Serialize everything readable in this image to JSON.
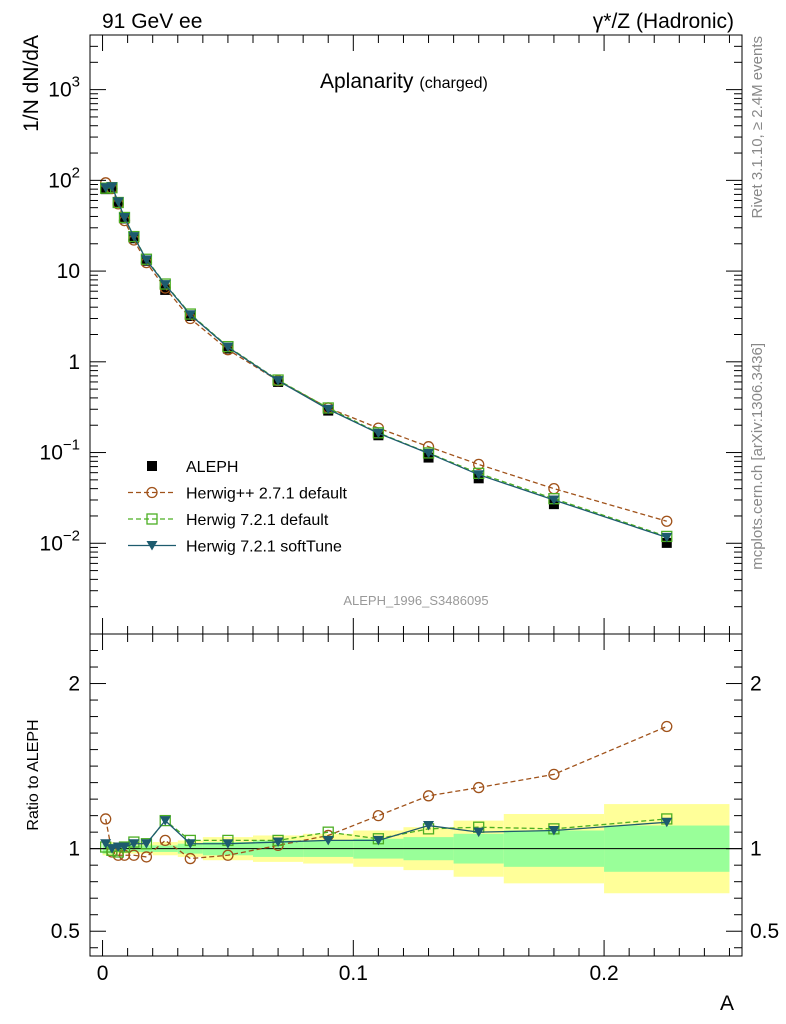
{
  "header": {
    "left": "91 GeV ee",
    "right_prefix": "γ",
    "right_suffix": "*/Z (Hadronic)"
  },
  "side_labels": {
    "rivet": "Rivet 3.1.10, ≥ 2.4M events",
    "mcplots": "mcplots.cern.ch [arXiv:1306.3436]"
  },
  "chart_data": {
    "type": "line",
    "title": "Aplanarity",
    "title_suffix": "(charged)",
    "analysis_label": "ALEPH_1996_S3486095",
    "xlabel": "A",
    "ylabel": "1/N dN/dA",
    "ratio_ylabel": "Ratio to ALEPH",
    "xlim": [
      -0.005,
      0.255
    ],
    "ylim": [
      0.001,
      4000
    ],
    "y_log": true,
    "ratio_ylim": [
      0.35,
      2.3
    ],
    "x_ticks": [
      0,
      0.1,
      0.2
    ],
    "x_tick_labels": [
      "0",
      "0.1",
      "0.2"
    ],
    "y_ticks": [
      {
        "value": 0.01,
        "base": "10",
        "exp": "−2"
      },
      {
        "value": 0.1,
        "base": "10",
        "exp": "−1"
      },
      {
        "value": 1,
        "base": "1",
        "exp": ""
      },
      {
        "value": 10,
        "base": "10",
        "exp": ""
      },
      {
        "value": 100,
        "base": "10",
        "exp": "2"
      },
      {
        "value": 1000,
        "base": "10",
        "exp": "3"
      }
    ],
    "ratio_ticks": [
      {
        "value": 0.5,
        "label": "0.5"
      },
      {
        "value": 1,
        "label": "1"
      },
      {
        "value": 2,
        "label": "2"
      }
    ],
    "legend_placement": "lower-left",
    "bins": [
      [
        0,
        0.0025
      ],
      [
        0.0025,
        0.005
      ],
      [
        0.005,
        0.0075
      ],
      [
        0.0075,
        0.01
      ],
      [
        0.01,
        0.015
      ],
      [
        0.015,
        0.02
      ],
      [
        0.02,
        0.03
      ],
      [
        0.03,
        0.04
      ],
      [
        0.04,
        0.06
      ],
      [
        0.06,
        0.08
      ],
      [
        0.08,
        0.1
      ],
      [
        0.1,
        0.12
      ],
      [
        0.12,
        0.14
      ],
      [
        0.14,
        0.16
      ],
      [
        0.16,
        0.2
      ],
      [
        0.2,
        0.25
      ]
    ],
    "x": [
      0.00125,
      0.00375,
      0.00625,
      0.00875,
      0.0125,
      0.0175,
      0.025,
      0.035,
      0.05,
      0.07,
      0.09,
      0.11,
      0.13,
      0.15,
      0.18,
      0.225
    ],
    "data": {
      "name": "ALEPH",
      "values": [
        80,
        83,
        57,
        38,
        23,
        13,
        6.2,
        3.2,
        1.4,
        0.6,
        0.29,
        0.155,
        0.088,
        0.052,
        0.027,
        0.0101
      ],
      "band_green": [
        0.03,
        0.03,
        0.02,
        0.02,
        0.02,
        0.02,
        0.02,
        0.03,
        0.04,
        0.05,
        0.05,
        0.06,
        0.07,
        0.09,
        0.11,
        0.14
      ],
      "band_yellow": [
        0.04,
        0.04,
        0.03,
        0.03,
        0.03,
        0.03,
        0.04,
        0.05,
        0.07,
        0.08,
        0.09,
        0.11,
        0.13,
        0.17,
        0.21,
        0.27
      ]
    },
    "series": [
      {
        "name": "Herwig++ 2.7.1 default",
        "color": "#a0521a",
        "marker": "circle-open",
        "dashed": true,
        "values": [
          94,
          81,
          55,
          36,
          22,
          12.4,
          6.5,
          3.0,
          1.36,
          0.62,
          0.31,
          0.186,
          0.116,
          0.074,
          0.04,
          0.0175
        ],
        "ratio": [
          1.18,
          0.98,
          0.96,
          0.96,
          0.96,
          0.95,
          1.05,
          0.94,
          0.96,
          1.02,
          1.08,
          1.2,
          1.32,
          1.37,
          1.45,
          1.74
        ]
      },
      {
        "name": "Herwig 7.2.1 default",
        "color": "#4caf23",
        "marker": "square-open",
        "dashed": true,
        "values": [
          82,
          83,
          57,
          39,
          24,
          13.5,
          7.2,
          3.36,
          1.47,
          0.63,
          0.31,
          0.165,
          0.099,
          0.059,
          0.031,
          0.0119
        ],
        "ratio": [
          1.01,
          0.99,
          0.98,
          1.01,
          1.04,
          1.03,
          1.17,
          1.05,
          1.05,
          1.05,
          1.1,
          1.06,
          1.12,
          1.13,
          1.12,
          1.18
        ]
      },
      {
        "name": "Herwig 7.2.1 softTune",
        "color": "#1d5b6e",
        "marker": "triangle-down",
        "dashed": false,
        "values": [
          83,
          85,
          58,
          39,
          24,
          13.3,
          7.1,
          3.3,
          1.45,
          0.62,
          0.3,
          0.163,
          0.098,
          0.057,
          0.03,
          0.0116
        ],
        "ratio": [
          1.03,
          1.0,
          1.01,
          1.01,
          1.03,
          1.03,
          1.17,
          1.03,
          1.03,
          1.04,
          1.05,
          1.05,
          1.14,
          1.1,
          1.11,
          1.16
        ]
      }
    ]
  }
}
